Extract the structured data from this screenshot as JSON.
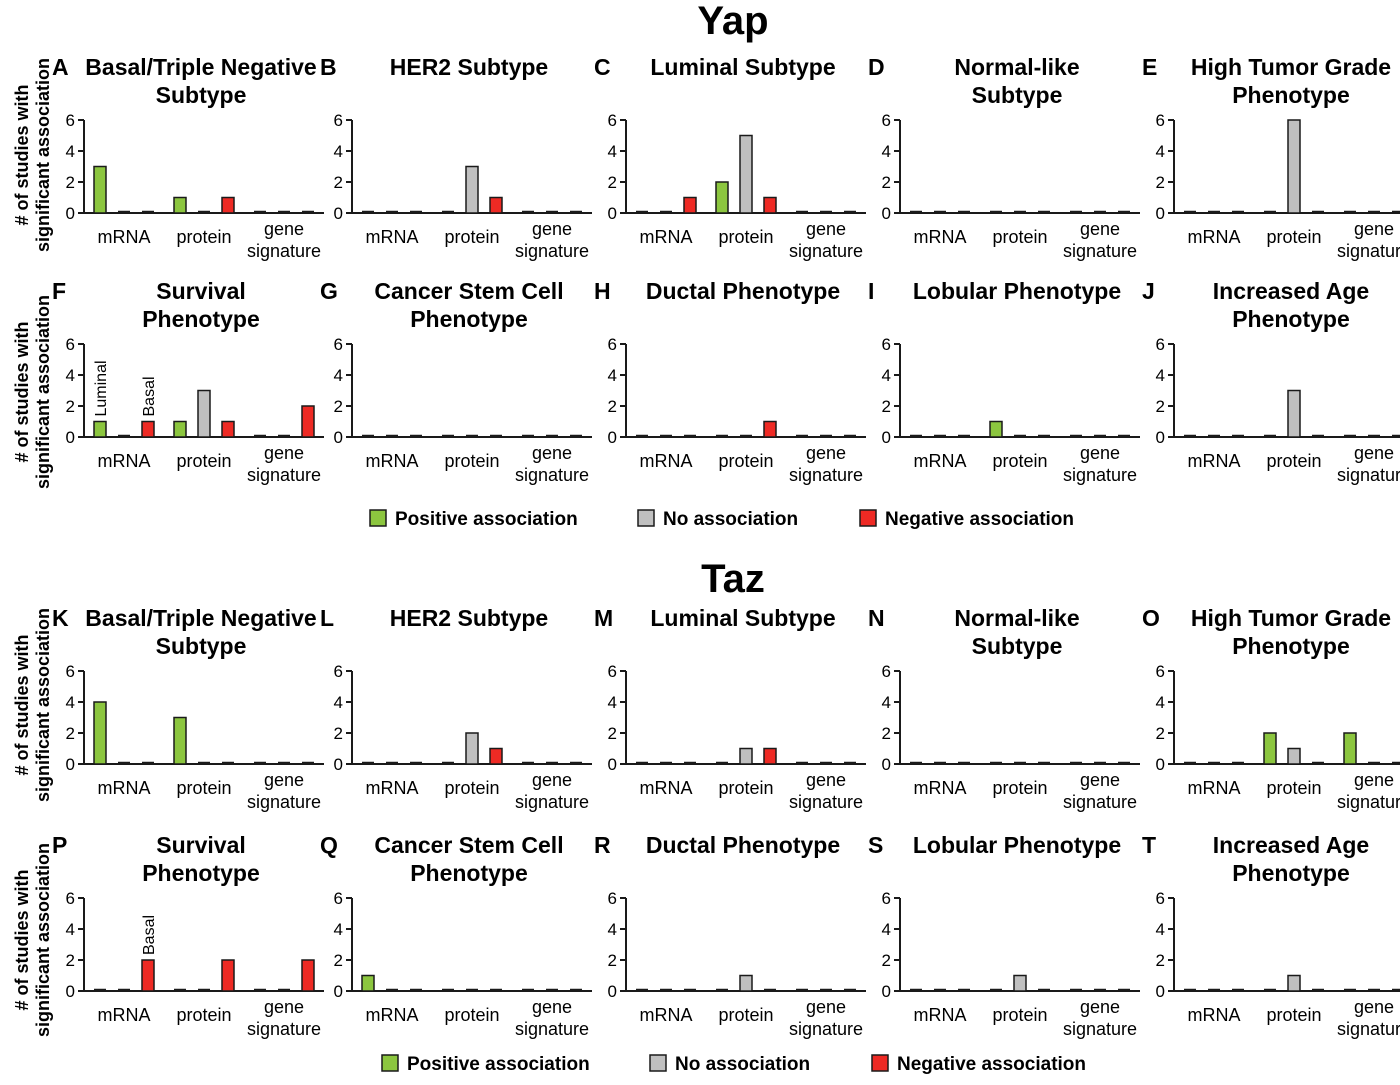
{
  "colors": {
    "positive": "#8cc63f",
    "none": "#c0c0c0",
    "negative": "#ee2a24",
    "outline": "#1a1a1a"
  },
  "sections": [
    {
      "title": "Yap",
      "ylabel": [
        "# of studies with",
        "significant association"
      ],
      "legend": [
        {
          "key": "positive",
          "label": "Positive association"
        },
        {
          "key": "none",
          "label": "No association"
        },
        {
          "key": "negative",
          "label": "Negative association"
        }
      ]
    },
    {
      "title": "Taz",
      "ylabel": [
        "# of studies with",
        "significant association"
      ],
      "legend": [
        {
          "key": "positive",
          "label": "Positive association"
        },
        {
          "key": "none",
          "label": "No association"
        },
        {
          "key": "negative",
          "label": "Negative association"
        }
      ]
    }
  ],
  "chart_data": [
    {
      "type": "bar",
      "letter": "A",
      "title": [
        "Basal/Triple Negative",
        "Subtype"
      ],
      "categories": [
        [
          "mRNA"
        ],
        [
          "protein"
        ],
        [
          "gene",
          "signature"
        ]
      ],
      "ylim": [
        0,
        6
      ],
      "yticks": [
        0,
        2,
        4,
        6
      ],
      "series": [
        {
          "name": "Positive association",
          "values": [
            3,
            1,
            0
          ]
        },
        {
          "name": "No association",
          "values": [
            0,
            0,
            0
          ]
        },
        {
          "name": "Negative association",
          "values": [
            0,
            1,
            0
          ]
        }
      ],
      "annotations": []
    },
    {
      "type": "bar",
      "letter": "B",
      "title": [
        "HER2 Subtype"
      ],
      "categories": [
        [
          "mRNA"
        ],
        [
          "protein"
        ],
        [
          "gene",
          "signature"
        ]
      ],
      "ylim": [
        0,
        6
      ],
      "yticks": [
        0,
        2,
        4,
        6
      ],
      "series": [
        {
          "name": "Positive association",
          "values": [
            0,
            0,
            0
          ]
        },
        {
          "name": "No association",
          "values": [
            0,
            3,
            0
          ]
        },
        {
          "name": "Negative association",
          "values": [
            0,
            1,
            0
          ]
        }
      ],
      "annotations": []
    },
    {
      "type": "bar",
      "letter": "C",
      "title": [
        "Luminal Subtype"
      ],
      "categories": [
        [
          "mRNA"
        ],
        [
          "protein"
        ],
        [
          "gene",
          "signature"
        ]
      ],
      "ylim": [
        0,
        6
      ],
      "yticks": [
        0,
        2,
        4,
        6
      ],
      "series": [
        {
          "name": "Positive association",
          "values": [
            0,
            2,
            0
          ]
        },
        {
          "name": "No association",
          "values": [
            0,
            5,
            0
          ]
        },
        {
          "name": "Negative association",
          "values": [
            1,
            1,
            0
          ]
        }
      ],
      "annotations": []
    },
    {
      "type": "bar",
      "letter": "D",
      "title": [
        "Normal-like",
        "Subtype"
      ],
      "categories": [
        [
          "mRNA"
        ],
        [
          "protein"
        ],
        [
          "gene",
          "signature"
        ]
      ],
      "ylim": [
        0,
        6
      ],
      "yticks": [
        0,
        2,
        4,
        6
      ],
      "series": [
        {
          "name": "Positive association",
          "values": [
            0,
            0,
            0
          ]
        },
        {
          "name": "No association",
          "values": [
            0,
            0,
            0
          ]
        },
        {
          "name": "Negative association",
          "values": [
            0,
            0,
            0
          ]
        }
      ],
      "annotations": []
    },
    {
      "type": "bar",
      "letter": "E",
      "title": [
        "High Tumor Grade",
        "Phenotype"
      ],
      "categories": [
        [
          "mRNA"
        ],
        [
          "protein"
        ],
        [
          "gene",
          "signature"
        ]
      ],
      "ylim": [
        0,
        6
      ],
      "yticks": [
        0,
        2,
        4,
        6
      ],
      "series": [
        {
          "name": "Positive association",
          "values": [
            0,
            0,
            0
          ]
        },
        {
          "name": "No association",
          "values": [
            0,
            6,
            0
          ]
        },
        {
          "name": "Negative association",
          "values": [
            0,
            0,
            0
          ]
        }
      ],
      "annotations": []
    },
    {
      "type": "bar",
      "letter": "F",
      "title": [
        "Survival",
        "Phenotype"
      ],
      "categories": [
        [
          "mRNA"
        ],
        [
          "protein"
        ],
        [
          "gene",
          "signature"
        ]
      ],
      "ylim": [
        0,
        6
      ],
      "yticks": [
        0,
        2,
        4,
        6
      ],
      "series": [
        {
          "name": "Positive association",
          "values": [
            1,
            1,
            0
          ]
        },
        {
          "name": "No association",
          "values": [
            0,
            3,
            0
          ]
        },
        {
          "name": "Negative association",
          "values": [
            1,
            1,
            2
          ]
        }
      ],
      "annotations": [
        {
          "category": 0,
          "series": 0,
          "text": "Luminal"
        },
        {
          "category": 0,
          "series": 2,
          "text": "Basal"
        }
      ]
    },
    {
      "type": "bar",
      "letter": "G",
      "title": [
        "Cancer Stem Cell",
        "Phenotype"
      ],
      "categories": [
        [
          "mRNA"
        ],
        [
          "protein"
        ],
        [
          "gene",
          "signature"
        ]
      ],
      "ylim": [
        0,
        6
      ],
      "yticks": [
        0,
        2,
        4,
        6
      ],
      "series": [
        {
          "name": "Positive association",
          "values": [
            0,
            0,
            0
          ]
        },
        {
          "name": "No association",
          "values": [
            0,
            0,
            0
          ]
        },
        {
          "name": "Negative association",
          "values": [
            0,
            0,
            0
          ]
        }
      ],
      "annotations": []
    },
    {
      "type": "bar",
      "letter": "H",
      "title": [
        "Ductal Phenotype"
      ],
      "categories": [
        [
          "mRNA"
        ],
        [
          "protein"
        ],
        [
          "gene",
          "signature"
        ]
      ],
      "ylim": [
        0,
        6
      ],
      "yticks": [
        0,
        2,
        4,
        6
      ],
      "series": [
        {
          "name": "Positive association",
          "values": [
            0,
            0,
            0
          ]
        },
        {
          "name": "No association",
          "values": [
            0,
            0,
            0
          ]
        },
        {
          "name": "Negative association",
          "values": [
            0,
            1,
            0
          ]
        }
      ],
      "annotations": []
    },
    {
      "type": "bar",
      "letter": "I",
      "title": [
        "Lobular Phenotype"
      ],
      "categories": [
        [
          "mRNA"
        ],
        [
          "protein"
        ],
        [
          "gene",
          "signature"
        ]
      ],
      "ylim": [
        0,
        6
      ],
      "yticks": [
        0,
        2,
        4,
        6
      ],
      "series": [
        {
          "name": "Positive association",
          "values": [
            0,
            1,
            0
          ]
        },
        {
          "name": "No association",
          "values": [
            0,
            0,
            0
          ]
        },
        {
          "name": "Negative association",
          "values": [
            0,
            0,
            0
          ]
        }
      ],
      "annotations": []
    },
    {
      "type": "bar",
      "letter": "J",
      "title": [
        "Increased Age",
        "Phenotype"
      ],
      "categories": [
        [
          "mRNA"
        ],
        [
          "protein"
        ],
        [
          "gene",
          "signature"
        ]
      ],
      "ylim": [
        0,
        6
      ],
      "yticks": [
        0,
        2,
        4,
        6
      ],
      "series": [
        {
          "name": "Positive association",
          "values": [
            0,
            0,
            0
          ]
        },
        {
          "name": "No association",
          "values": [
            0,
            3,
            0
          ]
        },
        {
          "name": "Negative association",
          "values": [
            0,
            0,
            0
          ]
        }
      ],
      "annotations": []
    },
    {
      "type": "bar",
      "letter": "K",
      "title": [
        "Basal/Triple Negative",
        "Subtype"
      ],
      "categories": [
        [
          "mRNA"
        ],
        [
          "protein"
        ],
        [
          "gene",
          "signature"
        ]
      ],
      "ylim": [
        0,
        6
      ],
      "yticks": [
        0,
        2,
        4,
        6
      ],
      "series": [
        {
          "name": "Positive association",
          "values": [
            4,
            3,
            0
          ]
        },
        {
          "name": "No association",
          "values": [
            0,
            0,
            0
          ]
        },
        {
          "name": "Negative association",
          "values": [
            0,
            0,
            0
          ]
        }
      ],
      "annotations": []
    },
    {
      "type": "bar",
      "letter": "L",
      "title": [
        "HER2 Subtype"
      ],
      "categories": [
        [
          "mRNA"
        ],
        [
          "protein"
        ],
        [
          "gene",
          "signature"
        ]
      ],
      "ylim": [
        0,
        6
      ],
      "yticks": [
        0,
        2,
        4,
        6
      ],
      "series": [
        {
          "name": "Positive association",
          "values": [
            0,
            0,
            0
          ]
        },
        {
          "name": "No association",
          "values": [
            0,
            2,
            0
          ]
        },
        {
          "name": "Negative association",
          "values": [
            0,
            1,
            0
          ]
        }
      ],
      "annotations": []
    },
    {
      "type": "bar",
      "letter": "M",
      "title": [
        "Luminal Subtype"
      ],
      "categories": [
        [
          "mRNA"
        ],
        [
          "protein"
        ],
        [
          "gene",
          "signature"
        ]
      ],
      "ylim": [
        0,
        6
      ],
      "yticks": [
        0,
        2,
        4,
        6
      ],
      "series": [
        {
          "name": "Positive association",
          "values": [
            0,
            0,
            0
          ]
        },
        {
          "name": "No association",
          "values": [
            0,
            1,
            0
          ]
        },
        {
          "name": "Negative association",
          "values": [
            0,
            1,
            0
          ]
        }
      ],
      "annotations": []
    },
    {
      "type": "bar",
      "letter": "N",
      "title": [
        "Normal-like",
        "Subtype"
      ],
      "categories": [
        [
          "mRNA"
        ],
        [
          "protein"
        ],
        [
          "gene",
          "signature"
        ]
      ],
      "ylim": [
        0,
        6
      ],
      "yticks": [
        0,
        2,
        4,
        6
      ],
      "series": [
        {
          "name": "Positive association",
          "values": [
            0,
            0,
            0
          ]
        },
        {
          "name": "No association",
          "values": [
            0,
            0,
            0
          ]
        },
        {
          "name": "Negative association",
          "values": [
            0,
            0,
            0
          ]
        }
      ],
      "annotations": []
    },
    {
      "type": "bar",
      "letter": "O",
      "title": [
        "High Tumor Grade",
        "Phenotype"
      ],
      "categories": [
        [
          "mRNA"
        ],
        [
          "protein"
        ],
        [
          "gene",
          "signature"
        ]
      ],
      "ylim": [
        0,
        6
      ],
      "yticks": [
        0,
        2,
        4,
        6
      ],
      "series": [
        {
          "name": "Positive association",
          "values": [
            0,
            2,
            2
          ]
        },
        {
          "name": "No association",
          "values": [
            0,
            1,
            0
          ]
        },
        {
          "name": "Negative association",
          "values": [
            0,
            0,
            0
          ]
        }
      ],
      "annotations": []
    },
    {
      "type": "bar",
      "letter": "P",
      "title": [
        "Survival",
        "Phenotype"
      ],
      "categories": [
        [
          "mRNA"
        ],
        [
          "protein"
        ],
        [
          "gene",
          "signature"
        ]
      ],
      "ylim": [
        0,
        6
      ],
      "yticks": [
        0,
        2,
        4,
        6
      ],
      "series": [
        {
          "name": "Positive association",
          "values": [
            0,
            0,
            0
          ]
        },
        {
          "name": "No association",
          "values": [
            0,
            0,
            0
          ]
        },
        {
          "name": "Negative association",
          "values": [
            2,
            2,
            2
          ]
        }
      ],
      "annotations": [
        {
          "category": 0,
          "series": 2,
          "text": "Basal"
        }
      ]
    },
    {
      "type": "bar",
      "letter": "Q",
      "title": [
        "Cancer Stem Cell",
        "Phenotype"
      ],
      "categories": [
        [
          "mRNA"
        ],
        [
          "protein"
        ],
        [
          "gene",
          "signature"
        ]
      ],
      "ylim": [
        0,
        6
      ],
      "yticks": [
        0,
        2,
        4,
        6
      ],
      "series": [
        {
          "name": "Positive association",
          "values": [
            1,
            0,
            0
          ]
        },
        {
          "name": "No association",
          "values": [
            0,
            0,
            0
          ]
        },
        {
          "name": "Negative association",
          "values": [
            0,
            0,
            0
          ]
        }
      ],
      "annotations": []
    },
    {
      "type": "bar",
      "letter": "R",
      "title": [
        "Ductal Phenotype"
      ],
      "categories": [
        [
          "mRNA"
        ],
        [
          "protein"
        ],
        [
          "gene",
          "signature"
        ]
      ],
      "ylim": [
        0,
        6
      ],
      "yticks": [
        0,
        2,
        4,
        6
      ],
      "series": [
        {
          "name": "Positive association",
          "values": [
            0,
            0,
            0
          ]
        },
        {
          "name": "No association",
          "values": [
            0,
            1,
            0
          ]
        },
        {
          "name": "Negative association",
          "values": [
            0,
            0,
            0
          ]
        }
      ],
      "annotations": []
    },
    {
      "type": "bar",
      "letter": "S",
      "title": [
        "Lobular Phenotype"
      ],
      "categories": [
        [
          "mRNA"
        ],
        [
          "protein"
        ],
        [
          "gene",
          "signature"
        ]
      ],
      "ylim": [
        0,
        6
      ],
      "yticks": [
        0,
        2,
        4,
        6
      ],
      "series": [
        {
          "name": "Positive association",
          "values": [
            0,
            0,
            0
          ]
        },
        {
          "name": "No association",
          "values": [
            0,
            1,
            0
          ]
        },
        {
          "name": "Negative association",
          "values": [
            0,
            0,
            0
          ]
        }
      ],
      "annotations": []
    },
    {
      "type": "bar",
      "letter": "T",
      "title": [
        "Increased Age",
        "Phenotype"
      ],
      "categories": [
        [
          "mRNA"
        ],
        [
          "protein"
        ],
        [
          "gene",
          "signature"
        ]
      ],
      "ylim": [
        0,
        6
      ],
      "yticks": [
        0,
        2,
        4,
        6
      ],
      "series": [
        {
          "name": "Positive association",
          "values": [
            0,
            0,
            0
          ]
        },
        {
          "name": "No association",
          "values": [
            0,
            1,
            0
          ]
        },
        {
          "name": "Negative association",
          "values": [
            0,
            0,
            0
          ]
        }
      ],
      "annotations": []
    }
  ]
}
